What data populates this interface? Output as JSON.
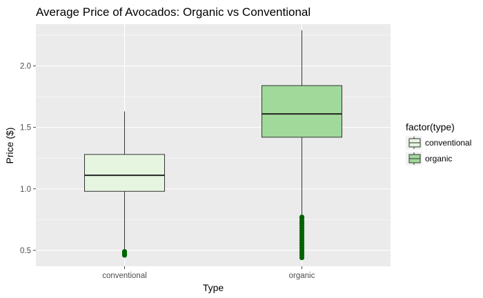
{
  "chart_data": {
    "type": "boxplot",
    "title": "Average Price of Avocados: Organic vs Conventional",
    "xlabel": "Type",
    "ylabel": "Price ($)",
    "ylim": [
      0.37,
      2.34
    ],
    "yticks": [
      0.5,
      1.0,
      1.5,
      2.0
    ],
    "ytick_labels": [
      "0.5",
      "1.0",
      "1.5",
      "2.0"
    ],
    "grid": true,
    "legend": {
      "title": "factor(type)",
      "position": "right",
      "entries": [
        "conventional",
        "organic"
      ]
    },
    "categories": [
      "conventional",
      "organic"
    ],
    "boxes": [
      {
        "category": "conventional",
        "whisker_low": 0.51,
        "q1": 0.98,
        "median": 1.11,
        "q3": 1.28,
        "whisker_high": 1.63,
        "outliers": [
          0.46,
          0.47,
          0.48,
          0.49
        ],
        "fill": "#e5f5e0"
      },
      {
        "category": "organic",
        "whisker_low": 0.78,
        "q1": 1.42,
        "median": 1.61,
        "q3": 1.84,
        "whisker_high": 2.29,
        "outliers": [
          0.44,
          0.46,
          0.48,
          0.5,
          0.52,
          0.54,
          0.56,
          0.58,
          0.6,
          0.62,
          0.64,
          0.66,
          0.68,
          0.7,
          0.72,
          0.74,
          0.76,
          0.77
        ],
        "fill": "#a1d99b"
      }
    ],
    "colors": {
      "outlier": "#006400",
      "panel_background": "#ebebeb",
      "grid": "#ffffff"
    }
  }
}
